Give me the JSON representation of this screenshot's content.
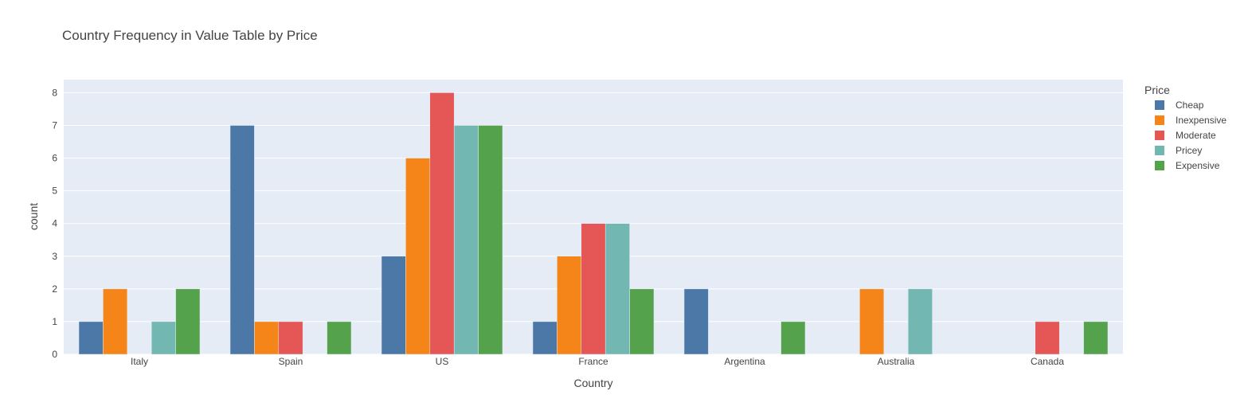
{
  "chart_data": {
    "type": "bar",
    "title": "Country Frequency in Value Table by Price",
    "xlabel": "Country",
    "ylabel": "count",
    "categories": [
      "Italy",
      "Spain",
      "US",
      "France",
      "Argentina",
      "Australia",
      "Canada"
    ],
    "ylim": [
      0,
      8.4
    ],
    "yticks": [
      "0",
      "1",
      "2",
      "3",
      "4",
      "5",
      "6",
      "7",
      "8"
    ],
    "grid": true,
    "legend_title": "Price",
    "legend_position": "top-right",
    "series": [
      {
        "name": "Cheap",
        "color": "#4c78a8",
        "values": [
          1,
          7,
          3,
          1,
          2,
          0,
          0
        ]
      },
      {
        "name": "Inexpensive",
        "color": "#f58518",
        "values": [
          2,
          1,
          6,
          3,
          0,
          2,
          0
        ]
      },
      {
        "name": "Moderate",
        "color": "#e45756",
        "values": [
          0,
          1,
          8,
          4,
          0,
          0,
          1
        ]
      },
      {
        "name": "Pricey",
        "color": "#72b7b2",
        "values": [
          1,
          0,
          7,
          4,
          0,
          2,
          0
        ]
      },
      {
        "name": "Expensive",
        "color": "#54a24b",
        "values": [
          2,
          1,
          7,
          2,
          1,
          0,
          1
        ]
      }
    ]
  }
}
